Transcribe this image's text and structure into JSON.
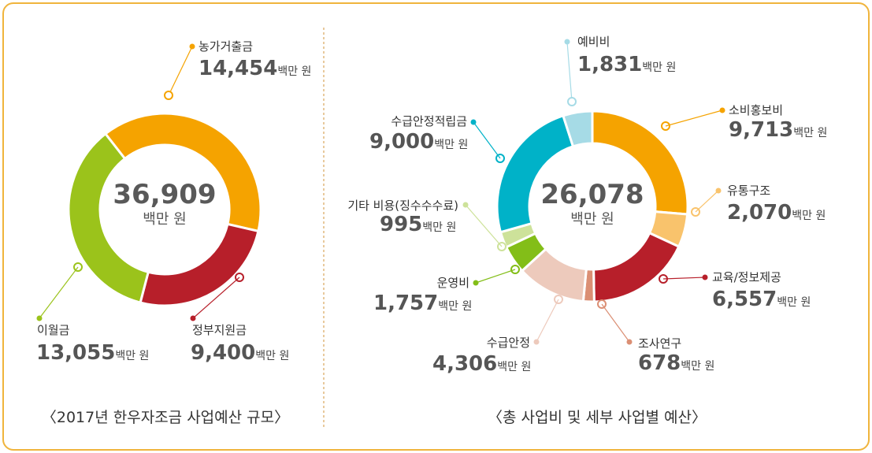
{
  "chart_data": [
    {
      "type": "pie",
      "title": "〈2017년 한우자조금 사업예산 규모〉",
      "center_value": "36,909",
      "center_unit": "백만 원",
      "unit": "백만 원",
      "slices": [
        {
          "label": "농가거출금",
          "value": 14454,
          "display": "14,454",
          "color": "#f5a300"
        },
        {
          "label": "정부지원금",
          "value": 9400,
          "display": "9,400",
          "color": "#b71f2a"
        },
        {
          "label": "이월금",
          "value": 13055,
          "display": "13,055",
          "color": "#9bc31b"
        }
      ]
    },
    {
      "type": "pie",
      "title": "〈총 사업비 및 세부 사업별 예산〉",
      "center_value": "26,078",
      "center_unit": "백만 원",
      "unit": "백만 원",
      "slices": [
        {
          "label": "소비홍보비",
          "value": 9713,
          "display": "9,713",
          "color": "#f5a300"
        },
        {
          "label": "유통구조",
          "value": 2070,
          "display": "2,070",
          "color": "#f9c36c"
        },
        {
          "label": "교육/정보제공",
          "value": 6557,
          "display": "6,557",
          "color": "#b71f2a"
        },
        {
          "label": "조사연구",
          "value": 678,
          "display": "678",
          "color": "#db8f74"
        },
        {
          "label": "수급안정",
          "value": 4306,
          "display": "4,306",
          "color": "#edcabc"
        },
        {
          "label": "운영비",
          "value": 1757,
          "display": "1,757",
          "color": "#83be18"
        },
        {
          "label": "기타 비용(징수수수료)",
          "value": 995,
          "display": "995",
          "color": "#cde29a"
        },
        {
          "label": "수급안정적립금",
          "value": 9000,
          "display": "9,000",
          "color": "#00b2c8"
        },
        {
          "label": "예비비",
          "value": 1831,
          "display": "1,831",
          "color": "#a6dbe6"
        }
      ]
    }
  ]
}
